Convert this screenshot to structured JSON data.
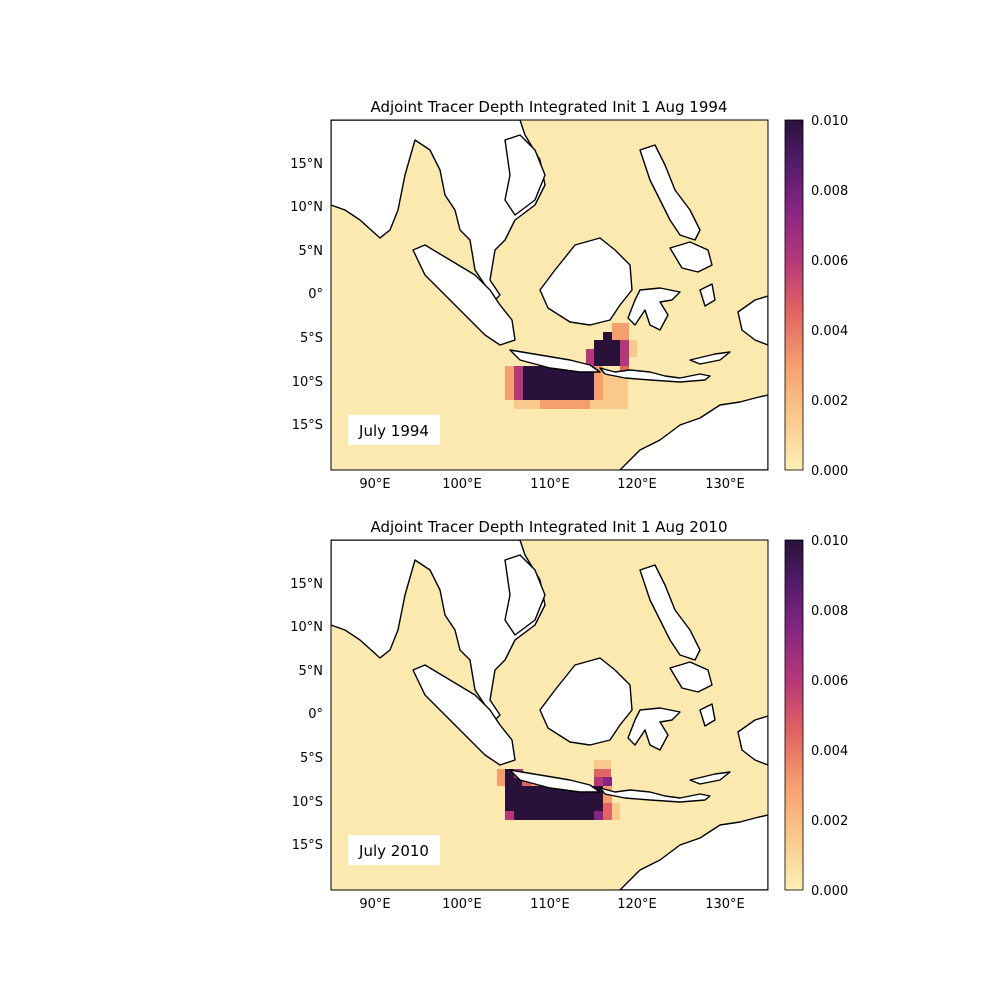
{
  "panels": [
    {
      "title": "Adjoint Tracer Depth Integrated Init 1 Aug 1994",
      "inset_label": "July 1994"
    },
    {
      "title": "Adjoint Tracer Depth Integrated Init 1 Aug 2010",
      "inset_label": "July 2010"
    }
  ],
  "map_extent": {
    "lon": [
      85,
      135
    ],
    "lat": [
      -20,
      20
    ]
  },
  "lon_ticks": [
    {
      "value": 90,
      "label": "90°E"
    },
    {
      "value": 100,
      "label": "100°E"
    },
    {
      "value": 110,
      "label": "110°E"
    },
    {
      "value": 120,
      "label": "120°E"
    },
    {
      "value": 130,
      "label": "130°E"
    }
  ],
  "lat_ticks": [
    {
      "value": 15,
      "label": "15°N"
    },
    {
      "value": 10,
      "label": "10°N"
    },
    {
      "value": 5,
      "label": "5°N"
    },
    {
      "value": 0,
      "label": "0°"
    },
    {
      "value": -5,
      "label": "5°S"
    },
    {
      "value": -10,
      "label": "10°S"
    },
    {
      "value": -15,
      "label": "15°S"
    }
  ],
  "colorbar": {
    "colormap": "magma_r",
    "range": [
      0,
      0.01
    ],
    "levels": 20,
    "ticks": [
      {
        "value": 0.0,
        "label": "0.000"
      },
      {
        "value": 0.002,
        "label": "0.002"
      },
      {
        "value": 0.004,
        "label": "0.004"
      },
      {
        "value": 0.006,
        "label": "0.006"
      },
      {
        "value": 0.008,
        "label": "0.008"
      },
      {
        "value": 0.01,
        "label": "0.010"
      }
    ]
  },
  "colors": {
    "background_field": "#fbe9b0",
    "land": "#ffffff",
    "coastline": "#000000"
  }
}
